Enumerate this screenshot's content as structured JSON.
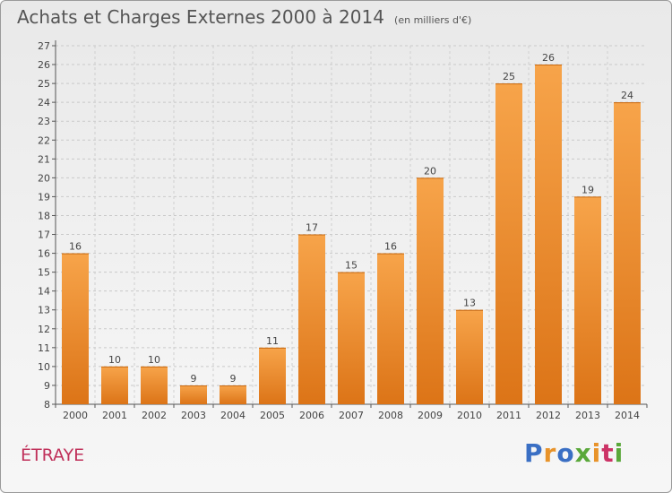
{
  "title": "Achats et Charges Externes 2000 à 2014",
  "unit_label": "(en milliers d'€)",
  "commune": "ÉTRAYE",
  "logo": {
    "text": "Proxiti",
    "letters": [
      "P",
      "r",
      "o",
      "x",
      "i",
      "t",
      "i"
    ],
    "colors": [
      "#3a6fc4",
      "#e8932a",
      "#3a6fc4",
      "#5aa83a",
      "#e8932a",
      "#cc3366",
      "#5aa83a"
    ]
  },
  "chart_data": {
    "type": "bar",
    "categories": [
      "2000",
      "2001",
      "2002",
      "2003",
      "2004",
      "2005",
      "2006",
      "2007",
      "2008",
      "2009",
      "2010",
      "2011",
      "2012",
      "2013",
      "2014"
    ],
    "values": [
      16,
      10,
      10,
      9,
      9,
      11,
      17,
      15,
      16,
      20,
      13,
      25,
      26,
      19,
      24
    ],
    "ylim": [
      8,
      27
    ],
    "yticks": [
      8,
      9,
      10,
      11,
      12,
      13,
      14,
      15,
      16,
      17,
      18,
      19,
      20,
      21,
      22,
      23,
      24,
      25,
      26,
      27
    ],
    "grid": true,
    "bar_color": "#f0912f",
    "title": "Achats et Charges Externes 2000 à 2014",
    "xlabel": "",
    "ylabel": ""
  }
}
